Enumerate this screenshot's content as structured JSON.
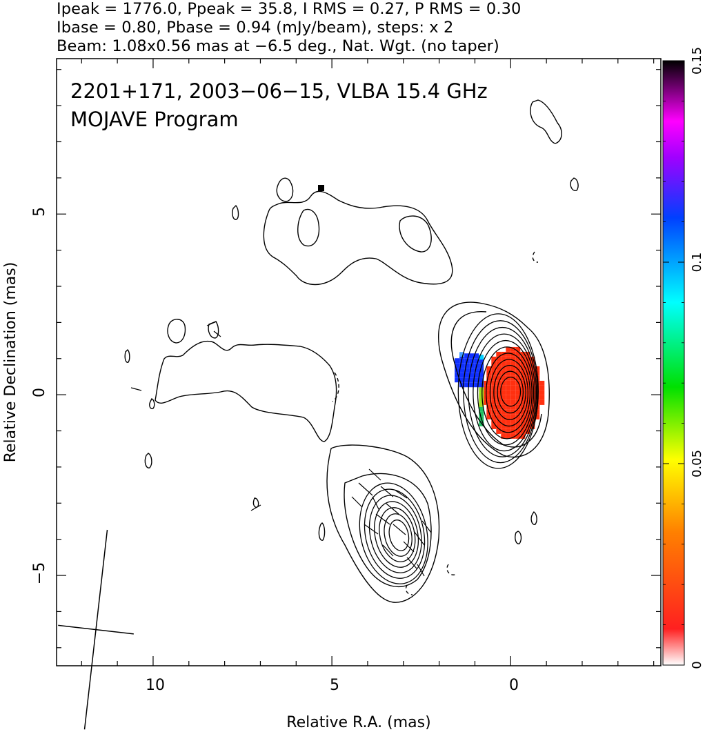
{
  "header": {
    "line1": "Ipeak = 1776.0, Ppeak = 35.8, I RMS = 0.27, P RMS = 0.30",
    "line2": "Ibase = 0.80, Pbase = 0.94 (mJy/beam), steps: x 2",
    "line3": "Beam: 1.08x0.56 mas at −6.5 deg., Nat. Wgt. (no taper)"
  },
  "chart_data": {
    "type": "heatmap",
    "title_line1": "2201+171, 2003−06−15, VLBA 15.4 GHz",
    "title_line2": "MOJAVE Program",
    "xlabel": "Relative R.A. (mas)",
    "ylabel": "Relative Declination (mas)",
    "xlim": [
      12.7,
      -4.2
    ],
    "ylim": [
      -7.5,
      9.3
    ],
    "x_direction": "reversed",
    "xticks": [
      10,
      5,
      0
    ],
    "yticks": [
      5,
      0,
      -5
    ],
    "xtick_labels": [
      "10",
      "5",
      "0"
    ],
    "ytick_labels": [
      "5",
      "0",
      "−5"
    ],
    "colorbar": {
      "min": 0,
      "max": 0.15,
      "ticks": [
        0,
        0.05,
        0.1,
        0.15
      ],
      "tick_labels": [
        "0",
        "0.05",
        "0.1",
        "0.15"
      ],
      "colors": [
        "#ffffff",
        "#ff2020",
        "#ff8000",
        "#ffff00",
        "#00e000",
        "#00ffff",
        "#0040ff",
        "#a000ff",
        "#ff00ff",
        "#000000"
      ]
    },
    "beam": {
      "major_mas": 1.08,
      "minor_mas": 0.56,
      "pa_deg": -6.5
    },
    "contours": {
      "base_mJy_per_beam": 0.8,
      "step_factor": 2,
      "core": {
        "center": [
          0.0,
          0.1
        ],
        "levels": 11
      },
      "southern_knot": {
        "center": [
          3.1,
          -3.9
        ],
        "levels": 7
      }
    },
    "polarization_patches": [
      {
        "name": "core",
        "center": [
          0.0,
          0.1
        ],
        "fraction": 0.025
      },
      {
        "name": "core-east",
        "center": [
          1.2,
          0.8
        ],
        "fraction": 0.115
      }
    ]
  }
}
